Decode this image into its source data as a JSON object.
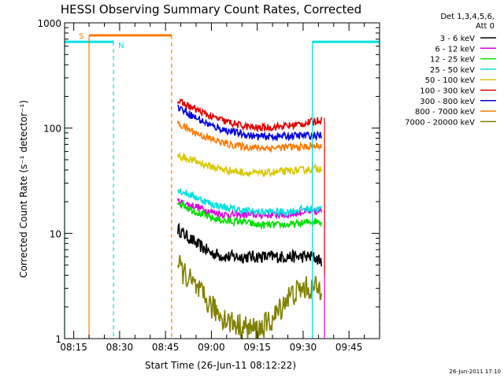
{
  "chart_data": {
    "type": "line",
    "title": "HESSI Observing Summary Count Rates, Corrected",
    "xlabel": "Start Time (26-Jun-11 08:12:22)",
    "ylabel": "Corrected Count Rate (s⁻¹ detector⁻¹)",
    "yscale": "log",
    "ylim": [
      1,
      1000
    ],
    "xlim": [
      "08:12",
      "09:55"
    ],
    "x_ticks": [
      "08:15",
      "08:30",
      "08:45",
      "09:00",
      "09:15",
      "09:30",
      "09:45"
    ],
    "y_ticks": [
      "1",
      "10",
      "100",
      "1000"
    ],
    "legend_header": [
      "Det 1,3,4,5,6,",
      "Att 0"
    ],
    "legend_position": "right",
    "grid": false,
    "footer_text": "26-Jun-2011 17:10",
    "x_sample_times": [
      "08:49",
      "08:55",
      "09:00",
      "09:05",
      "09:10",
      "09:15",
      "09:20",
      "09:25",
      "09:30",
      "09:33",
      "09:36"
    ],
    "series": [
      {
        "name": "3 - 6 keV",
        "color": "#000000",
        "values": [
          11,
          8.0,
          6.5,
          6.0,
          6.0,
          6.0,
          6.0,
          6.0,
          6.0,
          6.0,
          5.5
        ]
      },
      {
        "name": "6 - 12 keV",
        "color": "#e000e0",
        "values": [
          20,
          18,
          16,
          15,
          15,
          15,
          15,
          15,
          16,
          16,
          16
        ]
      },
      {
        "name": "12 - 25 keV",
        "color": "#00e000",
        "values": [
          20,
          16,
          14,
          13,
          13,
          12,
          12,
          12,
          12.5,
          13,
          13
        ]
      },
      {
        "name": "25 - 50 keV",
        "color": "#00e0e0",
        "values": [
          26,
          22,
          19,
          17.5,
          16.5,
          16,
          16,
          16,
          17,
          17,
          17
        ]
      },
      {
        "name": "50 - 100 keV",
        "color": "#d8c800",
        "values": [
          55,
          48,
          43,
          40,
          38,
          37,
          38,
          39,
          40,
          41,
          42
        ]
      },
      {
        "name": "100 - 300 keV",
        "color": "#e00000",
        "values": [
          180,
          150,
          128,
          115,
          105,
          100,
          102,
          105,
          110,
          115,
          120
        ]
      },
      {
        "name": "300 - 800 keV",
        "color": "#0000e0",
        "values": [
          160,
          125,
          105,
          95,
          88,
          83,
          83,
          84,
          85,
          85,
          85
        ]
      },
      {
        "name": "800 - 7000 keV",
        "color": "#ff7a00",
        "values": [
          110,
          90,
          78,
          71,
          67,
          65,
          65,
          66,
          66,
          67,
          68
        ]
      },
      {
        "name": "7000 - 20000 keV",
        "color": "#808000",
        "values": [
          5,
          3,
          2,
          1.5,
          1.3,
          1.2,
          1.5,
          2.5,
          3,
          3,
          3
        ]
      }
    ],
    "annotations": {
      "saa_label": "S",
      "night_label": "N",
      "saa_color": "#ff7a00",
      "night_color": "#00e0e0",
      "night_intervals": [
        [
          "08:12",
          "08:28"
        ],
        [
          "09:33",
          "09:55"
        ]
      ],
      "night_level": 660,
      "saa_intervals": [
        [
          "08:20",
          "08:47"
        ]
      ],
      "saa_level": 760,
      "attenuator_line": "09:37"
    }
  }
}
